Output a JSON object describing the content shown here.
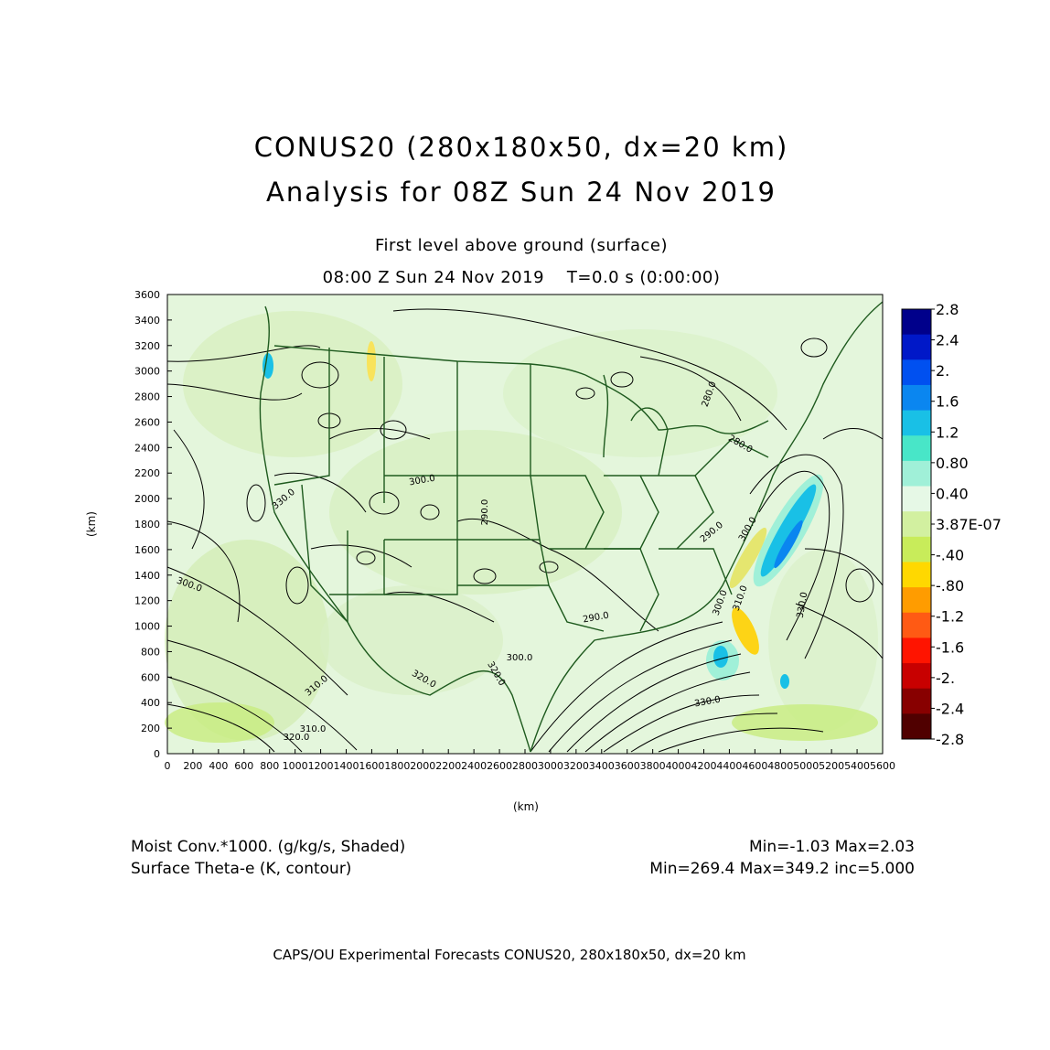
{
  "header": {
    "title_line1": "CONUS20 (280x180x50, dx=20 km)",
    "title_line2": "Analysis for 08Z Sun 24 Nov 2019",
    "subtitle_line1": "First level above ground (surface)",
    "subtitle_line2": "08:00 Z Sun 24 Nov 2019    T=0.0 s (0:00:00)"
  },
  "axes": {
    "x_label": "(km)",
    "y_label": "(km)",
    "x_ticks": [
      "0",
      "200",
      "400",
      "600",
      "800",
      "1000",
      "1200",
      "1400",
      "1600",
      "1800",
      "2000",
      "2200",
      "2400",
      "2600",
      "2800",
      "3000",
      "3200",
      "3400",
      "3600",
      "3800",
      "4000",
      "4200",
      "4400",
      "4600",
      "4800",
      "5000",
      "5200",
      "5400",
      "5600"
    ],
    "y_ticks": [
      "0",
      "200",
      "400",
      "600",
      "800",
      "1000",
      "1200",
      "1400",
      "1600",
      "1800",
      "2000",
      "2200",
      "2400",
      "2600",
      "2800",
      "3000",
      "3200",
      "3400",
      "3600"
    ]
  },
  "colorbar": {
    "labels": [
      "2.8",
      "2.4",
      "2.",
      "1.6",
      "1.2",
      "0.80",
      "0.40",
      "3.87E-07",
      "-.40",
      "-.80",
      "-1.2",
      "-1.6",
      "-2.",
      "-2.4",
      "-2.8"
    ],
    "colors": [
      "#00008b",
      "#0018c8",
      "#0050f0",
      "#0a86f0",
      "#19c0e6",
      "#48e6c8",
      "#a0f0d8",
      "#e6f8e6",
      "#d2f0a0",
      "#c8ec5a",
      "#ffd800",
      "#ff9c00",
      "#ff5a14",
      "#ff1400",
      "#c80000",
      "#880000",
      "#500000"
    ]
  },
  "contour_labels": [
    "280.0",
    "280.0",
    "290.0",
    "300.0",
    "300.0",
    "290.0",
    "300.0",
    "300.0",
    "310.0",
    "310.0",
    "320.0",
    "320.0",
    "330.0",
    "330.0",
    "330.0",
    "320.0",
    "290.0",
    "300.0",
    "310.0"
  ],
  "footer": {
    "field1": "Moist Conv.*1000. (g/kg/s, Shaded)",
    "field2": "Surface Theta-e (K, contour)",
    "stats1": "Min=-1.03 Max=2.03",
    "stats2": "Min=269.4 Max=349.2 inc=5.000",
    "credit": "CAPS/OU Experimental Forecasts  CONUS20, 280x180x50, dx=20 km"
  }
}
